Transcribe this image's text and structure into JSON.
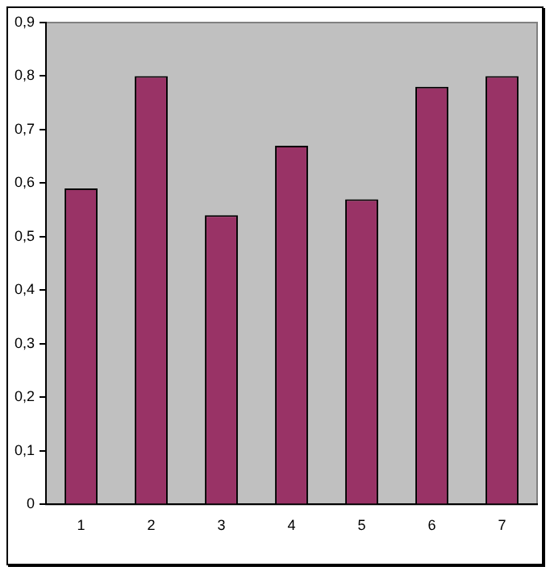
{
  "chart_data": {
    "type": "bar",
    "categories": [
      "1",
      "2",
      "3",
      "4",
      "5",
      "6",
      "7"
    ],
    "values": [
      0.59,
      0.8,
      0.54,
      0.67,
      0.57,
      0.78,
      0.8
    ],
    "color": "#993366",
    "ylim": [
      0,
      0.9
    ],
    "yticks": [
      0,
      {
        "value": 0.1,
        "label": "0,1"
      },
      {
        "value": 0.2,
        "label": "0,2"
      },
      {
        "value": 0.3,
        "label": "0,3"
      },
      {
        "value": 0.4,
        "label": "0,4"
      },
      {
        "value": 0.5,
        "label": "0,5"
      },
      {
        "value": 0.6,
        "label": "0,6"
      },
      {
        "value": 0.7,
        "label": "0,7"
      },
      {
        "value": 0.8,
        "label": "0,8"
      },
      {
        "value": 0.9,
        "label": "0,9"
      }
    ],
    "grid": false,
    "legend": false
  }
}
